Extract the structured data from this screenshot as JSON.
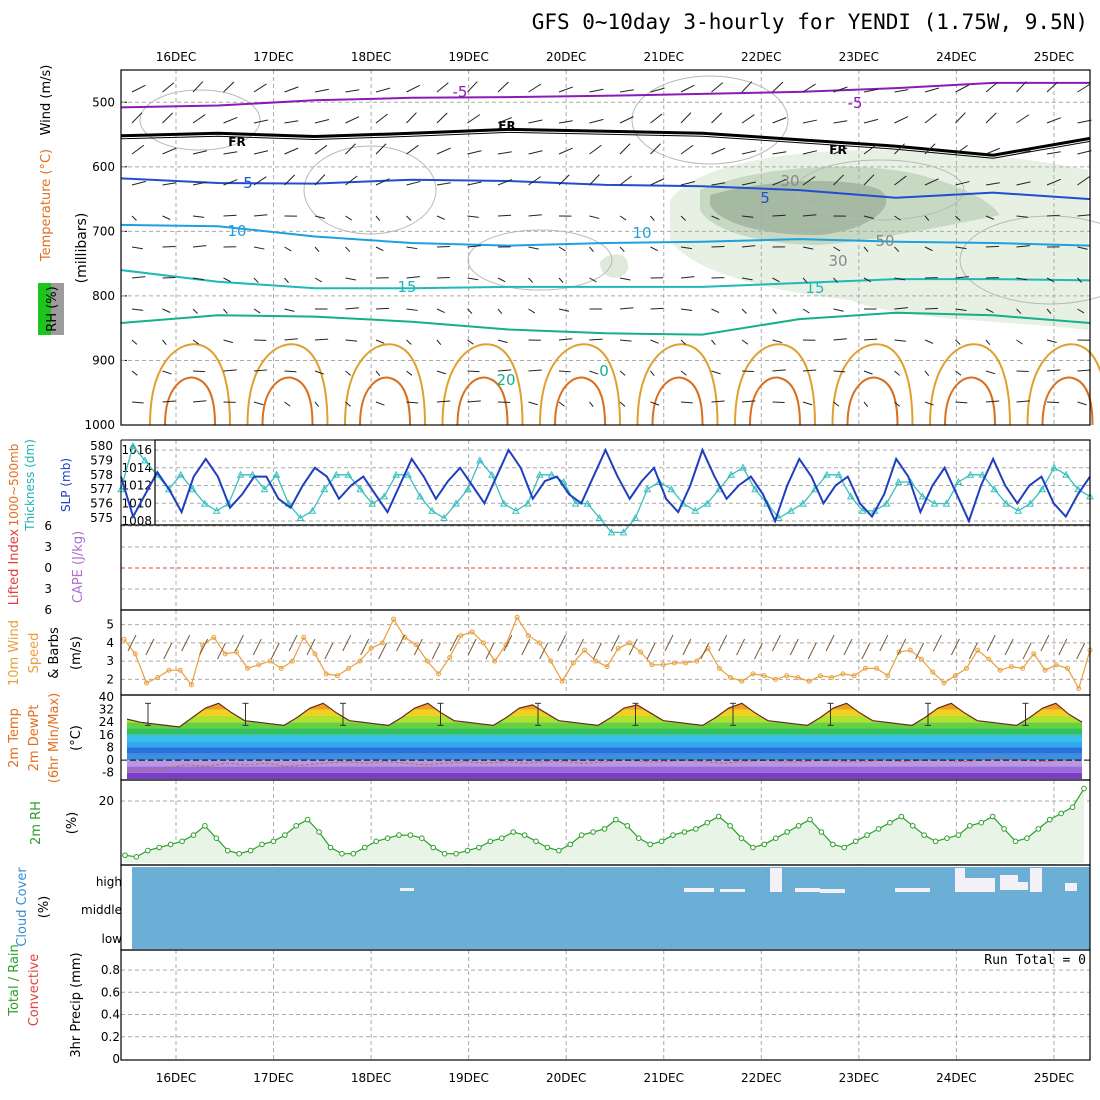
{
  "title": "GFS 0~10day 3-hourly for YENDI (1.75W, 9.5N)",
  "dates": [
    "16DEC",
    "17DEC",
    "18DEC",
    "19DEC",
    "20DEC",
    "21DEC",
    "22DEC",
    "23DEC",
    "24DEC",
    "25DEC"
  ],
  "colors": {
    "frame": "#000000",
    "grid": "#aaaaaa",
    "cloud": "#6baed6",
    "temp_area": "#e8581e",
    "rh_area": "#e8f4e6",
    "rh_line": "#2ca02c",
    "thickness": "#3bbfbf",
    "slp": "#1f3fbf",
    "wind10": "#e8a03c",
    "lifted": "#e04040",
    "cape": "#b070d0"
  },
  "chart_data": [
    {
      "type": "line",
      "panel": "upper-air",
      "ylabel_parts": [
        "RH (%)",
        "(millibars)",
        "Temperature (°C)",
        "Wind (m/s)"
      ],
      "yticks": [
        "500",
        "600",
        "700",
        "800",
        "900",
        "1000"
      ],
      "ylim": [
        1000,
        450
      ],
      "contour_labels": [
        "-5",
        "-5",
        "FR",
        "FR",
        "FR",
        "5",
        "5",
        "10",
        "10",
        "15",
        "15",
        "20",
        "0",
        "30",
        "30",
        "50"
      ],
      "series": [
        {
          "level": -5,
          "color": "#8b1ab8",
          "p": [
            508,
            505,
            497,
            493,
            492,
            490,
            487,
            484,
            478,
            470,
            470
          ]
        },
        {
          "level": 0,
          "color": "#000000",
          "p": [
            552,
            548,
            553,
            548,
            542,
            545,
            548,
            558,
            568,
            582,
            556
          ]
        },
        {
          "level": 5,
          "color": "#1f4fd0",
          "p": [
            618,
            625,
            626,
            620,
            622,
            628,
            630,
            636,
            648,
            640,
            650
          ]
        },
        {
          "level": 10,
          "color": "#1e9fdf",
          "p": [
            690,
            692,
            708,
            718,
            722,
            718,
            716,
            712,
            716,
            718,
            722
          ]
        },
        {
          "level": 15,
          "color": "#20b8b8",
          "p": [
            760,
            778,
            788,
            788,
            786,
            786,
            786,
            780,
            774,
            774,
            776
          ]
        },
        {
          "level": 20,
          "color": "#14b08a",
          "p": [
            842,
            830,
            832,
            840,
            852,
            858,
            860,
            836,
            826,
            830,
            842
          ]
        }
      ]
    },
    {
      "type": "line",
      "panel": "thickness-slp",
      "ylabel_parts": [
        "1000~500mb",
        "Thickness (dm)",
        "SLP (mb)"
      ],
      "left_ticks": [
        "580",
        "579",
        "578",
        "577",
        "576",
        "575"
      ],
      "right_ticks": [
        "1016",
        "1014",
        "1012",
        "1010",
        "1008"
      ],
      "series": [
        {
          "name": "Thickness",
          "axis": "left",
          "values": [
            577,
            580,
            579,
            578,
            577,
            578,
            577,
            576,
            575.5,
            576,
            578,
            578,
            577,
            578,
            576,
            575,
            575.5,
            577,
            578,
            578,
            577,
            576,
            576.5,
            578,
            578,
            576.5,
            575.5,
            575,
            576,
            577,
            579,
            578,
            576,
            575.5,
            576,
            578,
            578,
            577.5,
            576,
            576,
            575,
            574,
            574,
            575,
            577,
            577.5,
            577,
            576,
            575.5,
            576,
            577,
            578,
            578.5,
            577,
            576,
            575,
            575.5,
            576,
            577,
            578,
            578,
            576.5,
            575.5,
            575.5,
            576,
            577.5,
            577.5,
            576.5,
            576,
            576,
            577.5,
            578,
            578,
            577,
            576,
            575.5,
            576,
            577,
            578.5,
            578,
            577,
            576.5
          ]
        },
        {
          "name": "SLP",
          "axis": "right",
          "values": [
            1013,
            1008.5,
            1011,
            1013.5,
            1011.5,
            1009,
            1013,
            1015,
            1013,
            1009.5,
            1011,
            1013,
            1013,
            1010.5,
            1009.5,
            1012,
            1014,
            1013,
            1010.5,
            1012,
            1013,
            1011,
            1009,
            1012,
            1015,
            1013,
            1010.5,
            1012.5,
            1014,
            1012,
            1010,
            1013,
            1016,
            1014,
            1010.5,
            1012.5,
            1013,
            1011,
            1010,
            1013,
            1016,
            1013,
            1010.5,
            1012.5,
            1014,
            1010.5,
            1009,
            1012,
            1016,
            1013,
            1010.5,
            1012,
            1013,
            1011,
            1008,
            1012,
            1015,
            1013,
            1010,
            1012,
            1013,
            1010,
            1008.5,
            1011,
            1015,
            1013,
            1009,
            1012,
            1014,
            1011,
            1008,
            1012,
            1015,
            1012,
            1010,
            1012,
            1013,
            1010,
            1008.5,
            1011,
            1013
          ]
        }
      ]
    },
    {
      "type": "line",
      "panel": "stability",
      "ylabel_parts": [
        "Lifted Index",
        "CAPE (J/kg)"
      ],
      "yticks": [
        "-6",
        "-3",
        "0",
        "3",
        "6"
      ],
      "series": [
        {
          "name": "Lifted Index",
          "values": []
        }
      ]
    },
    {
      "type": "line",
      "panel": "10m-wind",
      "ylabel_parts": [
        "10m Wind",
        "Speed",
        "(m/s)",
        "& Barbs"
      ],
      "yticks": [
        "2",
        "3",
        "4",
        "5"
      ],
      "ylim": [
        1.2,
        5.8
      ],
      "series": [
        {
          "name": "10m Wind Speed",
          "values": [
            4.2,
            3.4,
            1.8,
            2.1,
            2.5,
            2.5,
            1.7,
            3.9,
            4.3,
            3.4,
            3.5,
            2.6,
            2.8,
            3.0,
            2.6,
            3.0,
            4.3,
            3.4,
            2.3,
            2.2,
            2.6,
            3.0,
            3.7,
            4.0,
            5.3,
            4.3,
            3.9,
            3.0,
            2.3,
            3.2,
            4.4,
            4.6,
            4.0,
            3.0,
            3.9,
            5.4,
            4.4,
            4.0,
            3.0,
            1.9,
            2.9,
            3.6,
            3.0,
            2.7,
            3.7,
            4.0,
            3.5,
            2.8,
            2.8,
            2.9,
            2.9,
            3.0,
            3.7,
            2.6,
            2.1,
            1.9,
            2.3,
            2.2,
            2.0,
            2.2,
            2.1,
            1.9,
            2.2,
            2.1,
            2.3,
            2.2,
            2.6,
            2.6,
            2.2,
            3.5,
            3.6,
            3.1,
            2.4,
            1.8,
            2.2,
            2.6,
            3.6,
            3.1,
            2.5,
            2.7,
            2.6,
            3.4,
            2.5,
            2.8,
            2.6,
            1.5,
            3.6
          ]
        }
      ]
    },
    {
      "type": "area",
      "panel": "2m-temp",
      "ylabel_parts": [
        "2m Temp",
        "2m DewPt",
        "(6hr Min/Max)",
        "(°C)"
      ],
      "yticks": [
        "40",
        "32",
        "24",
        "16",
        "8",
        "0",
        "-8"
      ],
      "ylim": [
        -12,
        40
      ],
      "series": [
        {
          "name": "2m Temp",
          "values": [
            26,
            24,
            23,
            22,
            21,
            27,
            33,
            36,
            30,
            25,
            24,
            23,
            22,
            27,
            33,
            36,
            30,
            25,
            24,
            23,
            22,
            27,
            33,
            36,
            30,
            25,
            24,
            23,
            22,
            27,
            33,
            35,
            30,
            25,
            24,
            23,
            22,
            27,
            33,
            35,
            30,
            25,
            24,
            23,
            22,
            27,
            33,
            36,
            30,
            25,
            24,
            23,
            22,
            27,
            33,
            36,
            30,
            25,
            24,
            23,
            22,
            27,
            33,
            36,
            30,
            25,
            24,
            23,
            22,
            27,
            33,
            36,
            29,
            24
          ]
        },
        {
          "name": "2m DewPt",
          "values": [
            -6,
            -7,
            -5,
            -3,
            -4,
            -2,
            -3,
            -2,
            -4,
            -3,
            -2,
            -1,
            -2,
            -1,
            -2,
            -3,
            -2,
            -1,
            -2,
            -1,
            -2,
            -1,
            -1,
            -2,
            -1,
            0,
            -1,
            -1,
            0,
            -1,
            -2,
            -1,
            0,
            -1,
            -1,
            0,
            -1,
            -1,
            0,
            -1,
            0,
            0,
            -1,
            0,
            1,
            0,
            -1,
            0,
            0
          ]
        }
      ]
    },
    {
      "type": "area",
      "panel": "2m-rh",
      "ylabel_parts": [
        "2m RH",
        "(%)"
      ],
      "yticks": [
        "20"
      ],
      "ylim": [
        0,
        30
      ],
      "series": [
        {
          "name": "2m RH",
          "values": [
            2.5,
            2,
            4,
            5,
            6,
            7,
            9,
            12,
            8,
            4,
            3,
            4,
            6,
            7,
            9,
            12,
            14,
            10,
            5,
            3,
            3,
            5,
            7,
            8,
            9,
            9,
            8,
            5,
            3,
            3,
            4,
            5,
            7,
            8,
            10,
            9,
            7,
            5,
            4,
            6,
            9,
            10,
            11,
            14,
            12,
            8,
            6,
            7,
            9,
            10,
            11,
            13,
            15,
            12,
            8,
            5,
            6,
            8,
            10,
            12,
            14,
            10,
            6,
            5,
            7,
            9,
            11,
            13,
            15,
            12,
            9,
            7,
            8,
            9,
            12,
            13,
            15,
            11,
            7,
            8,
            11,
            14,
            16,
            18,
            24
          ]
        }
      ]
    },
    {
      "type": "heatmap",
      "panel": "cloud-cover",
      "ylabel_parts": [
        "Cloud Cover",
        "(%)"
      ],
      "yticks": [
        "high",
        "middle",
        "low"
      ]
    },
    {
      "type": "bar",
      "panel": "precip",
      "ylabel_parts": [
        "Total / Rain",
        "Convective",
        "3hr Precip (mm)"
      ],
      "yticks": [
        "0",
        "0.2",
        "0.4",
        "0.6",
        "0.8"
      ],
      "ylim": [
        0,
        1.0
      ],
      "run_total_label": "Run Total = 0",
      "values": []
    }
  ]
}
